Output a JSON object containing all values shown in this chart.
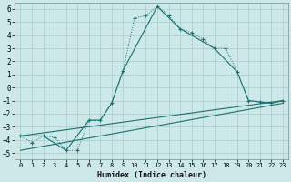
{
  "xlabel": "Humidex (Indice chaleur)",
  "bg_color": "#cce8e8",
  "grid_color": "#aacccc",
  "line_color": "#1a7070",
  "xlim": [
    -0.5,
    23.5
  ],
  "ylim": [
    -5.5,
    6.5
  ],
  "yticks": [
    -5,
    -4,
    -3,
    -2,
    -1,
    0,
    1,
    2,
    3,
    4,
    5,
    6
  ],
  "xticks": [
    0,
    1,
    2,
    3,
    4,
    5,
    6,
    7,
    8,
    9,
    10,
    11,
    12,
    13,
    14,
    15,
    16,
    17,
    18,
    19,
    20,
    21,
    22,
    23
  ],
  "series_dotted": {
    "x": [
      0,
      1,
      2,
      3,
      4,
      5,
      6,
      7,
      8,
      9,
      10,
      11,
      12,
      13,
      14,
      15,
      16,
      17,
      18,
      19,
      20,
      21,
      22,
      23
    ],
    "y": [
      -3.7,
      -4.2,
      -3.7,
      -3.8,
      -4.8,
      -4.8,
      -2.5,
      -2.5,
      -1.2,
      1.3,
      5.3,
      5.5,
      6.2,
      5.5,
      4.5,
      4.2,
      3.7,
      3.0,
      3.0,
      1.2,
      -1.0,
      -1.1,
      -1.2,
      -1.0
    ]
  },
  "series_solid": {
    "x": [
      0,
      2,
      4,
      6,
      7,
      8,
      9,
      12,
      14,
      17,
      19,
      20,
      22,
      23
    ],
    "y": [
      -3.7,
      -3.7,
      -4.8,
      -2.5,
      -2.5,
      -1.2,
      1.3,
      6.2,
      4.5,
      3.0,
      1.2,
      -1.0,
      -1.2,
      -1.0
    ]
  },
  "line1": {
    "x": [
      0,
      23
    ],
    "y": [
      -3.7,
      -1.0
    ]
  },
  "line2": {
    "x": [
      0,
      23
    ],
    "y": [
      -4.8,
      -1.2
    ]
  }
}
